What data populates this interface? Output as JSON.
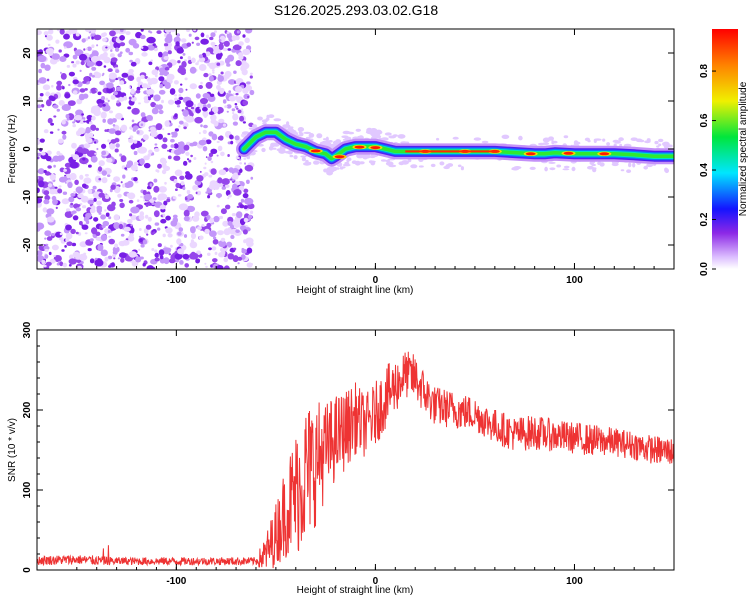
{
  "title": "S126.2025.293.03.02.G18",
  "chart_data": [
    {
      "type": "heatmap",
      "xlabel": "Height of straight line (km)",
      "ylabel": "Frequency (Hz)",
      "xlim": [
        -170,
        150
      ],
      "ylim": [
        -25,
        25
      ],
      "x_ticks": [
        -100,
        0,
        100
      ],
      "y_ticks": [
        20,
        10,
        0,
        -10,
        -20
      ],
      "noise_region_x": [
        -170,
        -65
      ],
      "signal_track": {
        "x": [
          -66,
          -60,
          -55,
          -50,
          -45,
          -40,
          -35,
          -30,
          -25,
          -22,
          -20,
          -15,
          -10,
          -5,
          0,
          5,
          10,
          20,
          40,
          60,
          80,
          85,
          90,
          100,
          110,
          120,
          130,
          140,
          150
        ],
        "freq": [
          0,
          2.5,
          3.5,
          3.5,
          2,
          1,
          0.5,
          -0.5,
          -1,
          -2,
          -1.5,
          0,
          0.5,
          0.5,
          0.5,
          0,
          -0.5,
          -0.5,
          -0.5,
          -0.5,
          -1,
          -1,
          -0.8,
          -1,
          -1,
          -1,
          -1.2,
          -1.5,
          -1.5
        ]
      },
      "colorbar": {
        "label": "Normalized spectral amplitude",
        "ticks": [
          0.0,
          0.2,
          0.4,
          0.6,
          0.8
        ],
        "range": [
          0,
          0.97
        ]
      },
      "grid": false
    },
    {
      "type": "line",
      "xlabel": "Height of straight line (km)",
      "ylabel": "SNR (10 * v/v)",
      "xlim": [
        -170,
        150
      ],
      "ylim": [
        0,
        300
      ],
      "x_ticks": [
        -100,
        0,
        100
      ],
      "y_ticks": [
        0,
        100,
        200,
        300
      ],
      "color": "#ee3333",
      "envelope": {
        "x": [
          -170,
          -150,
          -140,
          -130,
          -100,
          -80,
          -60,
          -55,
          -50,
          -45,
          -40,
          -35,
          -30,
          -25,
          -20,
          -15,
          -10,
          -5,
          0,
          5,
          10,
          15,
          20,
          25,
          30,
          40,
          50,
          60,
          70,
          80,
          90,
          100,
          110,
          120,
          130,
          140,
          150
        ],
        "mean": [
          12,
          13,
          12,
          11,
          11,
          11,
          11,
          20,
          45,
          75,
          95,
          120,
          135,
          150,
          165,
          175,
          190,
          180,
          195,
          215,
          230,
          245,
          240,
          220,
          205,
          200,
          195,
          180,
          170,
          172,
          168,
          165,
          162,
          160,
          156,
          150,
          148
        ],
        "spread": [
          6,
          6,
          6,
          5,
          5,
          5,
          5,
          25,
          40,
          60,
          80,
          90,
          80,
          60,
          55,
          50,
          45,
          40,
          40,
          40,
          35,
          30,
          30,
          28,
          25,
          24,
          22,
          22,
          22,
          22,
          20,
          20,
          20,
          18,
          18,
          18,
          18
        ]
      },
      "grid": false
    }
  ]
}
